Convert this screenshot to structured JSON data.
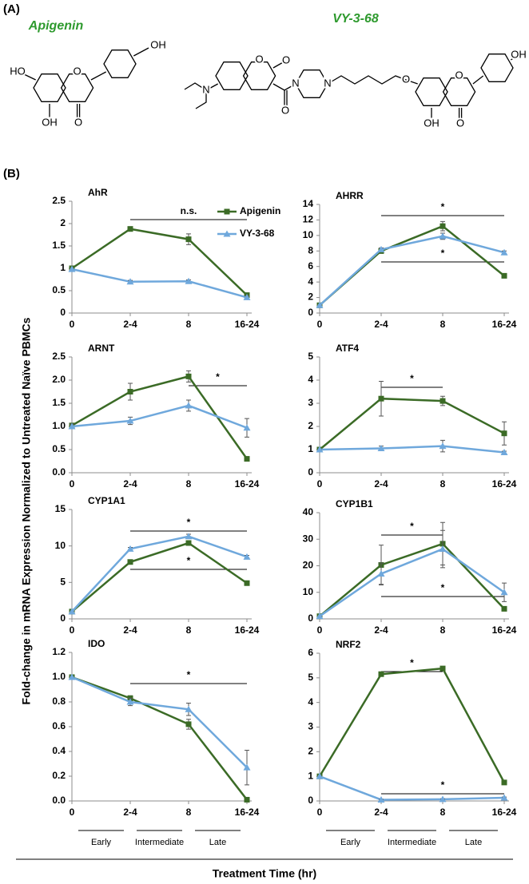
{
  "header": {
    "panel_a": "(A)",
    "panel_b": "(B)"
  },
  "structures": [
    {
      "name": "Apigenin",
      "atoms": [
        "HO",
        "O",
        "OH",
        "OH",
        "O"
      ]
    },
    {
      "name": "VY-3-68",
      "atoms": [
        "N",
        "O",
        "O",
        "O",
        "N",
        "N",
        "O",
        "O",
        "OH",
        "O",
        "OH"
      ]
    }
  ],
  "y_axis_label": "Fold-change in mRNA Expression Normalized to Untreated Naïve PBMCs",
  "x_axis_label": "Treatment Time (hr)",
  "time_phases": {
    "left": [
      "Early",
      "Intermediate",
      "Late"
    ],
    "right": [
      "Early",
      "Intermediate",
      "Late"
    ]
  },
  "chart_data": [
    {
      "type": "line",
      "title": "AhR",
      "categories": [
        "0",
        "2-4",
        "8",
        "16-24"
      ],
      "legend": true,
      "series": [
        {
          "name": "Apigenin",
          "color": "#3b6b26",
          "values": [
            1,
            1.88,
            1.65,
            0.4
          ],
          "errors": [
            0,
            0.05,
            0.12,
            0.03
          ]
        },
        {
          "name": "VY-3-68",
          "color": "#6fa8dc",
          "values": [
            0.98,
            0.7,
            0.71,
            0.35
          ],
          "errors": [
            0,
            0.03,
            0.03,
            0.03
          ]
        }
      ],
      "ylim": [
        0,
        2.5
      ],
      "yticks": [
        0,
        0.5,
        1,
        1.5,
        2,
        2.5
      ],
      "annotations": [
        "n.s."
      ]
    },
    {
      "type": "line",
      "title": "AHRR",
      "categories": [
        "0",
        "2-4",
        "8",
        "16-24"
      ],
      "series": [
        {
          "name": "Apigenin",
          "color": "#3b6b26",
          "values": [
            1,
            8,
            11.2,
            4.8
          ],
          "errors": [
            0,
            0.3,
            0.6,
            0.2
          ]
        },
        {
          "name": "VY-3-68",
          "color": "#6fa8dc",
          "values": [
            1,
            8.2,
            9.9,
            7.8
          ],
          "errors": [
            0,
            0.2,
            0.4,
            0.2
          ]
        }
      ],
      "ylim": [
        0,
        14
      ],
      "yticks": [
        0,
        2,
        4,
        6,
        8,
        10,
        12,
        14
      ],
      "annotations": [
        "*",
        "*"
      ]
    },
    {
      "type": "line",
      "title": "ARNT",
      "categories": [
        "0",
        "2-4",
        "8",
        "16-24"
      ],
      "series": [
        {
          "name": "Apigenin",
          "color": "#3b6b26",
          "values": [
            1.02,
            1.75,
            2.08,
            0.3
          ],
          "errors": [
            0.05,
            0.18,
            0.12,
            0.03
          ]
        },
        {
          "name": "VY-3-68",
          "color": "#6fa8dc",
          "values": [
            1,
            1.12,
            1.45,
            0.97
          ],
          "errors": [
            0.05,
            0.08,
            0.12,
            0.2
          ]
        }
      ],
      "ylim": [
        0,
        2.5
      ],
      "yticks": [
        {
          "value": 0,
          "label": "0.0"
        },
        {
          "value": 0.5,
          "label": "0.5"
        },
        {
          "value": 1,
          "label": "1.0"
        },
        {
          "value": 1.5,
          "label": "1.5"
        },
        {
          "value": 2,
          "label": "2.0"
        },
        {
          "value": 2.5,
          "label": "2.5"
        }
      ],
      "annotations": [
        "*"
      ]
    },
    {
      "type": "line",
      "title": "ATF4",
      "categories": [
        "0",
        "2-4",
        "8",
        "16-24"
      ],
      "series": [
        {
          "name": "Apigenin",
          "color": "#3b6b26",
          "values": [
            1,
            3.2,
            3.1,
            1.7
          ],
          "errors": [
            0,
            0.75,
            0.2,
            0.5
          ]
        },
        {
          "name": "VY-3-68",
          "color": "#6fa8dc",
          "values": [
            1,
            1.05,
            1.15,
            0.88
          ],
          "errors": [
            0,
            0.1,
            0.25,
            0.05
          ]
        }
      ],
      "ylim": [
        0,
        5
      ],
      "yticks": [
        0,
        1,
        2,
        3,
        4,
        5
      ],
      "annotations": [
        "*"
      ]
    },
    {
      "type": "line",
      "title": "CYP1A1",
      "categories": [
        "0",
        "2-4",
        "8",
        "16-24"
      ],
      "series": [
        {
          "name": "Apigenin",
          "color": "#3b6b26",
          "values": [
            1,
            7.8,
            10.4,
            4.9
          ],
          "errors": [
            0,
            0.2,
            0.3,
            0.1
          ]
        },
        {
          "name": "VY-3-68",
          "color": "#6fa8dc",
          "values": [
            1,
            9.6,
            11.3,
            8.5
          ],
          "errors": [
            0,
            0.2,
            0.3,
            0.2
          ]
        }
      ],
      "ylim": [
        0,
        15
      ],
      "yticks": [
        0,
        5,
        10,
        15
      ],
      "annotations": [
        "*",
        "*"
      ]
    },
    {
      "type": "line",
      "title": "CYP1B1",
      "categories": [
        "0",
        "2-4",
        "8",
        "16-24"
      ],
      "series": [
        {
          "name": "Apigenin",
          "color": "#3b6b26",
          "values": [
            1,
            20.3,
            28.3,
            3.8
          ],
          "errors": [
            0,
            7.5,
            8,
            0.6
          ]
        },
        {
          "name": "VY-3-68",
          "color": "#6fa8dc",
          "values": [
            1,
            17,
            26.3,
            10
          ],
          "errors": [
            0,
            4,
            7,
            3.5
          ]
        }
      ],
      "ylim": [
        0,
        40
      ],
      "yticks": [
        0,
        10,
        20,
        30,
        40
      ],
      "annotations": [
        "*",
        "*"
      ]
    },
    {
      "type": "line",
      "title": "IDO",
      "categories": [
        "0",
        "2-4",
        "8",
        "16-24"
      ],
      "series": [
        {
          "name": "Apigenin",
          "color": "#3b6b26",
          "values": [
            1,
            0.83,
            0.62,
            0.01
          ],
          "errors": [
            0,
            0.02,
            0.04,
            0.01
          ]
        },
        {
          "name": "VY-3-68",
          "color": "#6fa8dc",
          "values": [
            1,
            0.8,
            0.74,
            0.27
          ],
          "errors": [
            0,
            0.03,
            0.05,
            0.14
          ]
        }
      ],
      "ylim": [
        0,
        1.2
      ],
      "yticks": [
        {
          "value": 0,
          "label": "0.0"
        },
        {
          "value": 0.2,
          "label": "0.2"
        },
        {
          "value": 0.4,
          "label": "0.4"
        },
        {
          "value": 0.6,
          "label": "0.6"
        },
        {
          "value": 0.8,
          "label": "0.8"
        },
        {
          "value": 1,
          "label": "1.0"
        },
        {
          "value": 1.2,
          "label": "1.2"
        }
      ],
      "annotations": [
        "*"
      ]
    },
    {
      "type": "line",
      "title": "NRF2",
      "categories": [
        "0",
        "2-4",
        "8",
        "16-24"
      ],
      "series": [
        {
          "name": "Apigenin",
          "color": "#3b6b26",
          "values": [
            1,
            5.15,
            5.38,
            0.75
          ],
          "errors": [
            0,
            0.05,
            0.05,
            0.05
          ]
        },
        {
          "name": "VY-3-68",
          "color": "#6fa8dc",
          "values": [
            1,
            0.05,
            0.07,
            0.13
          ],
          "errors": [
            0,
            0.02,
            0.02,
            0.03
          ]
        }
      ],
      "ylim": [
        0,
        6
      ],
      "yticks": [
        0,
        1,
        2,
        3,
        4,
        5,
        6
      ],
      "annotations": [
        "*",
        "*"
      ]
    }
  ]
}
